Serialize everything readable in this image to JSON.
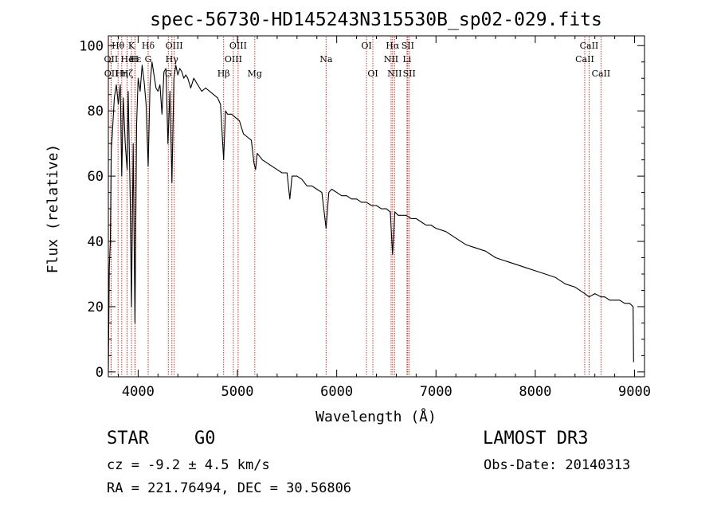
{
  "chart_data": {
    "type": "line",
    "title": "spec-56730-HD145243N315530B_sp02-029.fits",
    "xlabel": "Wavelength (Å)",
    "ylabel": "Flux (relative)",
    "xlim": [
      3700,
      9100
    ],
    "ylim": [
      -1.5,
      103
    ],
    "xticks": [
      4000,
      5000,
      6000,
      7000,
      8000,
      9000
    ],
    "yticks": [
      0,
      20,
      40,
      60,
      80,
      100
    ],
    "line_color": "#000000",
    "marker_color": "#c0392b",
    "series": [
      {
        "name": "spectrum",
        "x": [
          3700,
          3710,
          3720,
          3730,
          3740,
          3760,
          3780,
          3800,
          3820,
          3835,
          3850,
          3870,
          3889,
          3900,
          3920,
          3933,
          3950,
          3968,
          3985,
          4000,
          4020,
          4040,
          4060,
          4080,
          4101,
          4120,
          4140,
          4160,
          4180,
          4200,
          4220,
          4240,
          4260,
          4280,
          4300,
          4320,
          4340,
          4360,
          4380,
          4400,
          4420,
          4440,
          4460,
          4480,
          4500,
          4530,
          4560,
          4600,
          4640,
          4680,
          4720,
          4760,
          4800,
          4830,
          4861,
          4880,
          4900,
          4940,
          4980,
          5020,
          5060,
          5100,
          5140,
          5167,
          5183,
          5200,
          5250,
          5300,
          5350,
          5400,
          5450,
          5500,
          5528,
          5550,
          5600,
          5650,
          5700,
          5750,
          5800,
          5850,
          5893,
          5920,
          5950,
          6000,
          6050,
          6100,
          6150,
          6200,
          6250,
          6300,
          6350,
          6400,
          6450,
          6500,
          6540,
          6563,
          6585,
          6620,
          6660,
          6700,
          6750,
          6800,
          6850,
          6900,
          6950,
          7000,
          7100,
          7200,
          7300,
          7400,
          7500,
          7600,
          7700,
          7800,
          7900,
          8000,
          8100,
          8200,
          8300,
          8400,
          8498,
          8542,
          8600,
          8662,
          8700,
          8750,
          8800,
          8850,
          8900,
          8950,
          8985,
          8990
        ],
        "y": [
          0,
          32,
          40,
          68,
          73,
          84,
          88,
          82,
          88,
          60,
          84,
          70,
          62,
          86,
          54,
          20,
          70,
          15,
          76,
          90,
          86,
          94,
          89,
          82,
          63,
          88,
          95,
          91,
          87,
          86,
          88,
          79,
          92,
          93,
          70,
          86,
          58,
          90,
          94,
          91,
          93,
          92,
          90,
          91,
          90,
          87,
          90,
          88,
          86,
          87,
          86,
          85,
          84,
          82,
          65,
          80,
          79,
          79,
          78,
          77,
          73,
          72,
          71,
          64,
          62,
          67,
          65,
          64,
          63,
          62,
          61,
          61,
          53,
          60,
          60,
          59,
          57,
          57,
          56,
          55,
          44,
          55,
          56,
          55,
          54,
          54,
          53,
          53,
          52,
          52,
          51,
          51,
          50,
          50,
          49,
          36,
          49,
          48,
          48,
          48,
          47,
          47,
          46,
          45,
          45,
          44,
          43,
          41,
          39,
          38,
          37,
          35,
          34,
          33,
          32,
          31,
          30,
          29,
          27,
          26,
          24,
          23,
          24,
          23,
          23,
          22,
          22,
          22,
          21,
          21,
          20,
          3
        ]
      }
    ],
    "lines": [
      {
        "label": "OII",
        "x": 3727,
        "row": 2
      },
      {
        "label": "OII",
        "x": 3729,
        "row": 3
      },
      {
        "label": "Hθ",
        "x": 3798,
        "row": 1
      },
      {
        "label": "Hη",
        "x": 3835,
        "row": 3
      },
      {
        "label": "He",
        "x": 3889,
        "row": 2
      },
      {
        "label": "K",
        "x": 3933,
        "row": 1
      },
      {
        "label": "Hζ",
        "x": 3889,
        "row": 3
      },
      {
        "label": "H",
        "x": 3968,
        "row": 2
      },
      {
        "label": "Hε",
        "x": 3970,
        "row": 2
      },
      {
        "label": "Hδ",
        "x": 4101,
        "row": 1
      },
      {
        "label": "G",
        "x": 4101,
        "row": 2
      },
      {
        "label": "OIII",
        "x": 4363,
        "row": 1
      },
      {
        "label": "Hγ",
        "x": 4340,
        "row": 2
      },
      {
        "label": "G",
        "x": 4304,
        "row": 3
      },
      {
        "label": "Hβ",
        "x": 4861,
        "row": 3
      },
      {
        "label": "OIII",
        "x": 4959,
        "row": 2
      },
      {
        "label": "OIII",
        "x": 5007,
        "row": 1
      },
      {
        "label": "Mg",
        "x": 5175,
        "row": 3
      },
      {
        "label": "Na",
        "x": 5893,
        "row": 2
      },
      {
        "label": "OI",
        "x": 6300,
        "row": 1
      },
      {
        "label": "OI",
        "x": 6364,
        "row": 3
      },
      {
        "label": "NII",
        "x": 6548,
        "row": 2
      },
      {
        "label": "Hα",
        "x": 6563,
        "row": 1
      },
      {
        "label": "NII",
        "x": 6583,
        "row": 3
      },
      {
        "label": "SII",
        "x": 6716,
        "row": 1
      },
      {
        "label": "Li",
        "x": 6708,
        "row": 2
      },
      {
        "label": "SII",
        "x": 6731,
        "row": 3
      },
      {
        "label": "CaII",
        "x": 8498,
        "row": 2
      },
      {
        "label": "CaII",
        "x": 8542,
        "row": 1
      },
      {
        "label": "CaII",
        "x": 8662,
        "row": 3
      }
    ]
  },
  "info": {
    "obj_class": "STAR",
    "obj_type": "G0",
    "survey": "LAMOST DR3",
    "cz": "cz = -9.2 ± 4.5 km/s",
    "obs_date": "Obs-Date: 20140313",
    "radec": "RA = 221.76494, DEC =  30.56806"
  }
}
